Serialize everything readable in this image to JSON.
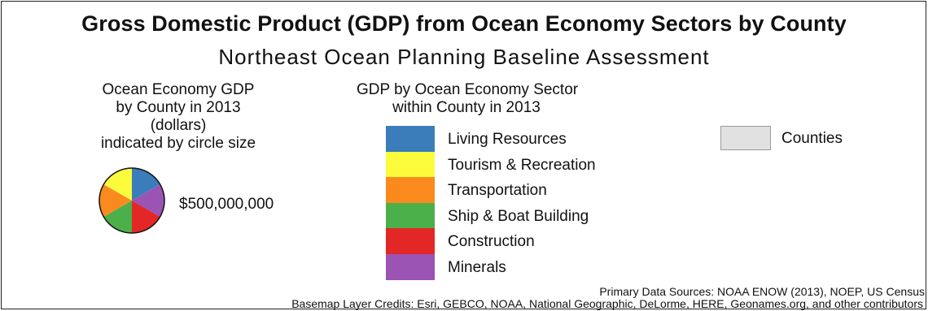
{
  "title": "Gross Domestic Product (GDP) from Ocean Economy Sectors by County",
  "subtitle": "Northeast Ocean Planning Baseline Assessment",
  "size_legend": {
    "lines": [
      "Ocean Economy GDP",
      "by County in 2013",
      "(dollars)",
      "indicated by circle size"
    ],
    "example_value": "$500,000,000"
  },
  "sector_legend": {
    "lines": [
      "GDP by Ocean Economy Sector",
      "within County in 2013"
    ],
    "items": [
      {
        "label": "Living Resources",
        "color": "#3b7dbb"
      },
      {
        "label": "Tourism & Recreation",
        "color": "#fcfc3c"
      },
      {
        "label": "Transportation",
        "color": "#fa8a1e"
      },
      {
        "label": "Ship & Boat Building",
        "color": "#4bb04a"
      },
      {
        "label": "Construction",
        "color": "#e32626"
      },
      {
        "label": "Minerals",
        "color": "#9b53b4"
      }
    ]
  },
  "counties_legend": {
    "label": "Counties",
    "color": "#e1e1e1"
  },
  "sources": "Primary Data Sources: NOAA ENOW (2013), NOEP, US Census",
  "credits": "Basemap Layer Credits:  Esri, GEBCO, NOAA, National Geographic, DeLorme, HERE, Geonames.org, and other contributors"
}
